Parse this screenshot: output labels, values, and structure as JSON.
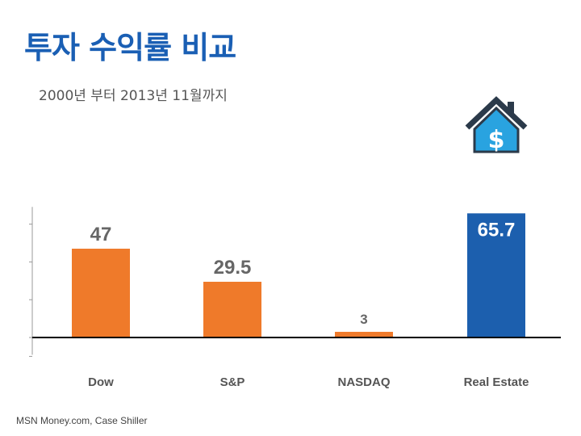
{
  "title": "투자 수익률 비교",
  "subtitle": "2000년 부터 2013년 11월까지",
  "source": "MSN Money.com, Case Shiller",
  "colors": {
    "title": "#1a5fb4",
    "orange": "#ef7a2a",
    "blue": "#1c5fae",
    "axis": "#000000",
    "label_gray": "#666666"
  },
  "icons": [
    "house-dollar-icon"
  ],
  "chart_data": {
    "type": "bar",
    "title": "투자 수익률 비교",
    "subtitle": "2000년 부터 2013년 11월까지",
    "categories": [
      "Dow",
      "S&P",
      "NASDAQ",
      "Real Estate"
    ],
    "values": [
      47,
      29.5,
      3,
      65.7
    ],
    "value_labels": [
      "47",
      "29.5",
      "3",
      "65.7"
    ],
    "bar_colors": [
      "#ef7a2a",
      "#ef7a2a",
      "#ef7a2a",
      "#1c5fae"
    ],
    "ylim": [
      -10,
      70
    ],
    "xlabel": "",
    "ylabel": "",
    "grid": false,
    "legend": "none"
  }
}
